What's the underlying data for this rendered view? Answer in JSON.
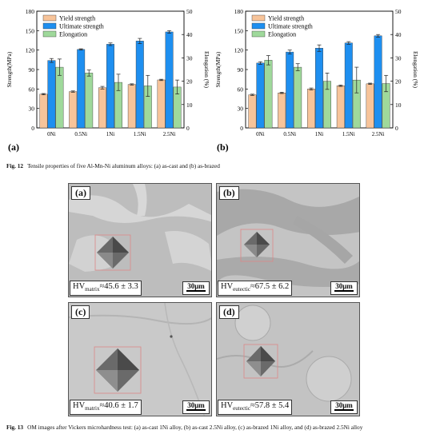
{
  "chart_data": [
    {
      "type": "bar",
      "panel_label": "(a)",
      "categories": [
        "0Ni",
        "0.5Ni",
        "1Ni",
        "1.5Ni",
        "2.5Ni"
      ],
      "ylabel": "Strength(MPa)",
      "y2label": "Elongation (%)",
      "ylim": [
        0,
        180
      ],
      "y2lim": [
        0,
        50
      ],
      "yticks": [
        0,
        30,
        60,
        90,
        120,
        150,
        180
      ],
      "y2ticks": [
        0,
        10,
        20,
        30,
        40,
        50
      ],
      "legend_placement": "top-left",
      "series": [
        {
          "name": "Yield strength",
          "axis": "left",
          "color": "#f7c49a",
          "values": [
            52,
            56,
            62,
            67,
            74
          ],
          "errors": [
            1,
            1,
            2,
            1,
            1
          ]
        },
        {
          "name": "Ultimate strength",
          "axis": "left",
          "color": "#1e8ff0",
          "values": [
            104,
            121,
            129,
            134,
            148
          ],
          "errors": [
            3,
            1,
            2,
            4,
            2
          ]
        },
        {
          "name": "Elongation",
          "axis": "right",
          "color": "#9fd99b",
          "values": [
            26,
            23.5,
            19.5,
            18,
            17.5
          ],
          "errors": [
            3.5,
            1.3,
            3.5,
            4.5,
            3
          ]
        }
      ]
    },
    {
      "type": "bar",
      "panel_label": "(b)",
      "categories": [
        "0Ni",
        "0.5Ni",
        "1Ni",
        "1.5Ni",
        "2.5Ni"
      ],
      "ylabel": "Strength(MPa)",
      "y2label": "Elongation (%)",
      "ylim": [
        0,
        180
      ],
      "y2lim": [
        0,
        50
      ],
      "yticks": [
        0,
        30,
        60,
        90,
        120,
        150,
        180
      ],
      "y2ticks": [
        0,
        10,
        20,
        30,
        40,
        50
      ],
      "legend_placement": "top-left",
      "series": [
        {
          "name": "Yield strength",
          "axis": "left",
          "color": "#f7c49a",
          "values": [
            51,
            54,
            60,
            65,
            68
          ],
          "errors": [
            1,
            1,
            1.5,
            1,
            1
          ]
        },
        {
          "name": "Ultimate strength",
          "axis": "left",
          "color": "#1e8ff0",
          "values": [
            100,
            117,
            123,
            131,
            142
          ],
          "errors": [
            2,
            3,
            5,
            2,
            2
          ]
        },
        {
          "name": "Elongation",
          "axis": "right",
          "color": "#9fd99b",
          "values": [
            29,
            26,
            20,
            20.5,
            19
          ],
          "errors": [
            2,
            1.5,
            3.5,
            5.5,
            3.5
          ]
        }
      ]
    }
  ],
  "figure12": {
    "num": "Fig. 12",
    "text": "Tensile properties of five Al-Mn-Ni aluminum alloys: (a) as-cast and (b) as-brazed"
  },
  "figure13": {
    "num": "Fig. 13",
    "text": "OM images after Vickers microhardness test: (a) as-cast 1Ni alloy, (b) as-cast 2.5Ni alloy, (c) as-brazed 1Ni alloy, and (d) as-brazed 2.5Ni alloy",
    "panels": [
      {
        "label": "(a)",
        "hv_prefix": "HV",
        "hv_sub": "matrix",
        "hv_value": "≈45.6 ± 3.3",
        "scale": "30μm"
      },
      {
        "label": "(b)",
        "hv_prefix": "HV",
        "hv_sub": "eutectic",
        "hv_value": "≈67.5 ± 6.2",
        "scale": "30μm"
      },
      {
        "label": "(c)",
        "hv_prefix": "HV",
        "hv_sub": "matrix",
        "hv_value": "≈40.6 ± 1.7",
        "scale": "30μm"
      },
      {
        "label": "(d)",
        "hv_prefix": "HV",
        "hv_sub": "eutectic",
        "hv_value": "≈57.8 ± 5.4",
        "scale": "30μm"
      }
    ]
  }
}
